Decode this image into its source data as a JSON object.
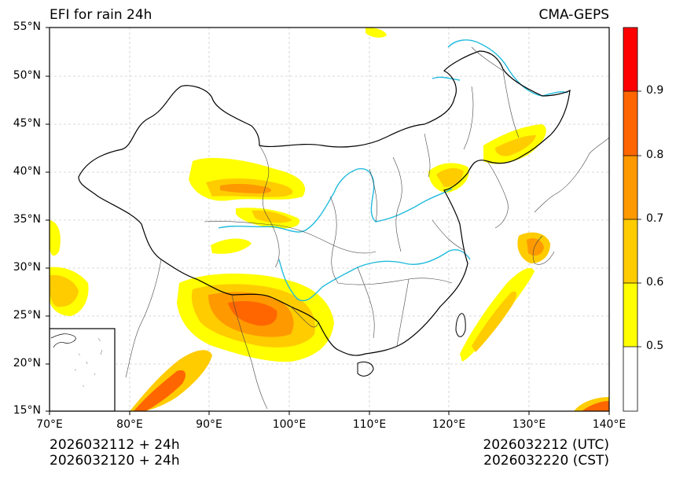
{
  "title_left": "EFI for rain 24h",
  "title_right": "CMA-GEPS",
  "lat_labels": [
    "55°N",
    "50°N",
    "45°N",
    "40°N",
    "35°N",
    "30°N",
    "25°N",
    "20°N",
    "15°N"
  ],
  "lon_labels": [
    "70°E",
    "80°E",
    "90°E",
    "100°E",
    "110°E",
    "120°E",
    "130°E",
    "140°E"
  ],
  "colorbar": {
    "tick_labels": [
      "0.5",
      "0.6",
      "0.7",
      "0.8",
      "0.9"
    ],
    "colors": [
      "#ffffff",
      "#ffff00",
      "#ffcc00",
      "#ff9900",
      "#ff6600",
      "#ff0000"
    ]
  },
  "footer": {
    "init_utc": "2026032112 + 24h",
    "init_cst": "2026032120 + 24h",
    "valid_utc": "2026032212 (UTC)",
    "valid_cst": "2026032220 (CST)"
  },
  "map_colors": {
    "river": "#22bbdd",
    "border": "#000000",
    "province": "#444444",
    "grid": "#cccccc"
  }
}
